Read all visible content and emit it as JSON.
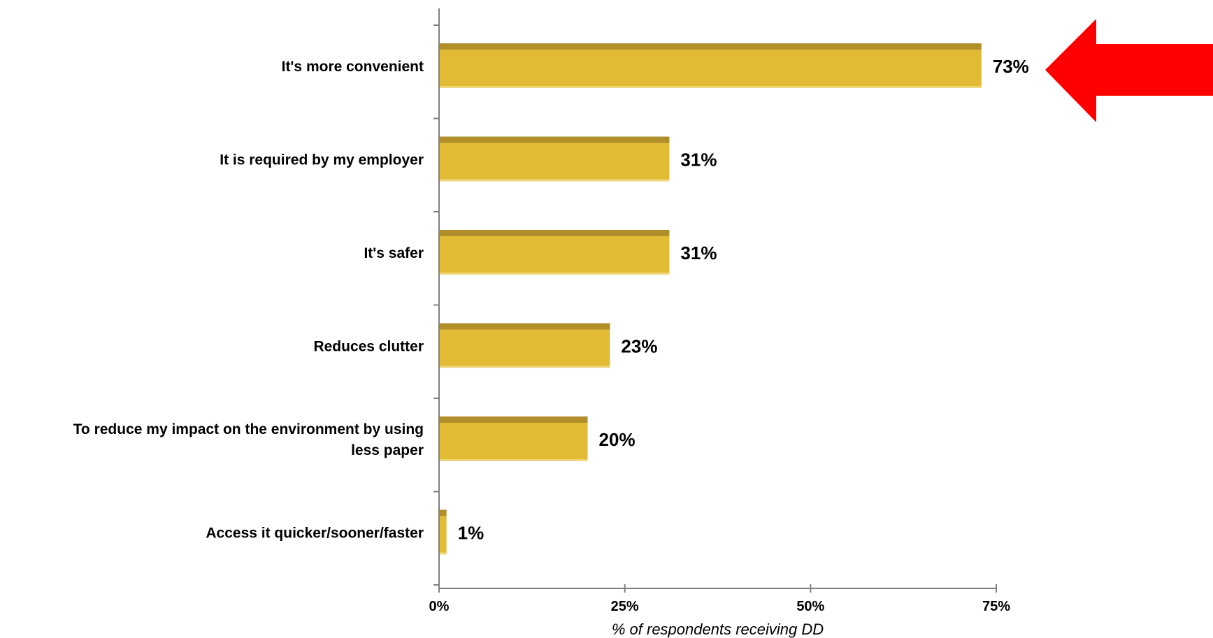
{
  "chart_data": {
    "type": "bar",
    "orientation": "horizontal",
    "categories": [
      "It's more convenient",
      "It is required by my employer",
      "It's safer",
      "Reduces clutter",
      "To reduce my impact on the environment by using less paper",
      "Access it quicker/sooner/faster"
    ],
    "category_lines": [
      [
        "It's more convenient"
      ],
      [
        "It is required by my employer"
      ],
      [
        "It's safer"
      ],
      [
        "Reduces clutter"
      ],
      [
        "To reduce my impact on the environment by using",
        "less paper"
      ],
      [
        "Access it quicker/sooner/faster"
      ]
    ],
    "values": [
      73,
      31,
      31,
      23,
      20,
      1
    ],
    "value_labels": [
      "73%",
      "31%",
      "31%",
      "23%",
      "20%",
      "1%"
    ],
    "xlabel": "% of respondents receiving DD",
    "xlim": [
      0,
      75
    ],
    "xticks": [
      0,
      25,
      50,
      75
    ],
    "xtick_labels": [
      "0%",
      "25%",
      "50%",
      "75%"
    ],
    "grid": false,
    "bar_color": "#E2BB35",
    "bar_top_color": "#B08F2A",
    "highlight_arrow_color": "#FF0000"
  }
}
